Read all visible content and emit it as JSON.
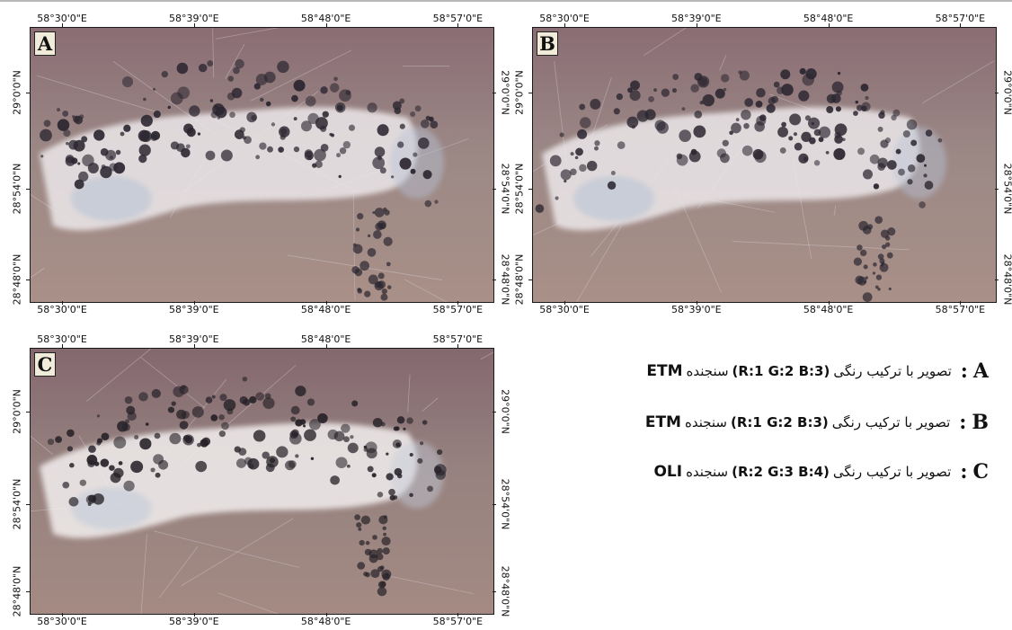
{
  "figure": {
    "lon_labels": [
      "58°30'0\"E",
      "58°39'0\"E",
      "58°48'0\"E",
      "58°57'0\"E"
    ],
    "lat_labels_left": [
      "29°0'0\"N",
      "28°54'0\"N",
      "28°48'0\"N"
    ],
    "lat_labels_right": [
      "29°0'0\"N",
      "28°54'0\"N",
      "28°48'0\"N"
    ],
    "panels": [
      {
        "letter": "A",
        "palette": {
          "base": "#9b8885",
          "upper": "#8a6d74",
          "lower": "#a99088",
          "bright": "#ece8ea",
          "blue": "#b9c4d6",
          "dark": "#2b2630"
        }
      },
      {
        "letter": "B",
        "palette": {
          "base": "#9b8885",
          "upper": "#8a6d74",
          "lower": "#a99088",
          "bright": "#ece8ea",
          "blue": "#b9c4d6",
          "dark": "#2b2630"
        }
      },
      {
        "letter": "C",
        "palette": {
          "base": "#96827f",
          "upper": "#84686f",
          "lower": "#a48a83",
          "bright": "#f2efee",
          "blue": "#c3ccd9",
          "dark": "#262228"
        }
      }
    ]
  },
  "legend": [
    {
      "letter": "A",
      "sep": ":",
      "text": "تصویر با ترکیب رنگی",
      "combo": "(R:1 G:2 B:3)",
      "sensor_prefix": "سنجنده",
      "sensor": "ETM"
    },
    {
      "letter": "B",
      "sep": ":",
      "text": "تصویر با ترکیب رنگی",
      "combo": "(R:1 G:2 B:3)",
      "sensor_prefix": "سنجنده",
      "sensor": "ETM"
    },
    {
      "letter": "C",
      "sep": ":",
      "text": "تصویر با ترکیب رنگی",
      "combo": "(R:2 G:3 B:4)",
      "sensor_prefix": "سنجنده",
      "sensor": "OLI"
    }
  ]
}
